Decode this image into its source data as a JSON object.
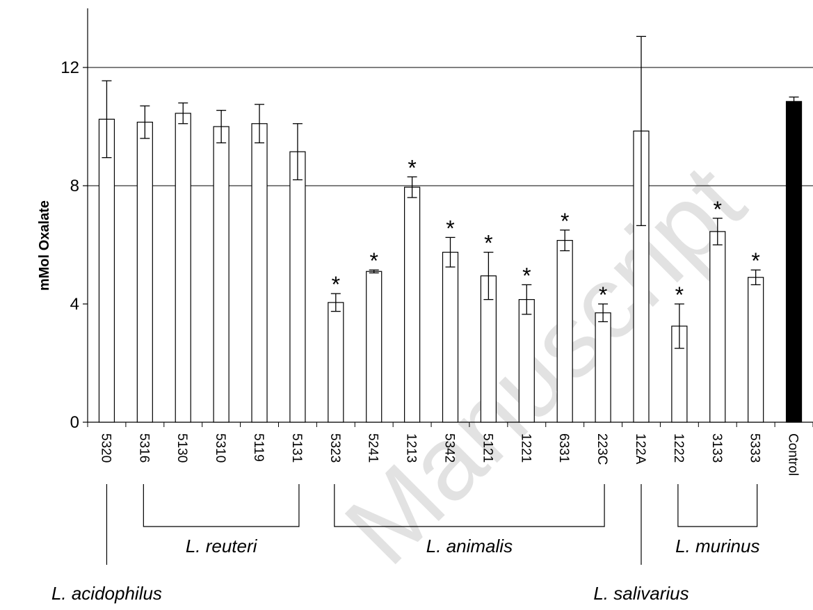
{
  "chart_data": {
    "type": "bar",
    "ylabel": "mMol Oxalate",
    "xlabel": "",
    "ylim": [
      0,
      14
    ],
    "yticks": [
      0,
      4,
      8,
      12
    ],
    "gridlines": [
      8,
      12
    ],
    "categories": [
      "5320",
      "5316",
      "5130",
      "5310",
      "5119",
      "5131",
      "5323",
      "5241",
      "1213",
      "5342",
      "5121",
      "1221",
      "6331",
      "223C",
      "122A",
      "1222",
      "3133",
      "5333",
      "Control"
    ],
    "values": [
      10.25,
      10.15,
      10.45,
      10.0,
      10.1,
      9.15,
      4.05,
      5.1,
      7.95,
      5.75,
      4.95,
      4.15,
      6.15,
      3.7,
      9.85,
      3.25,
      6.45,
      4.9,
      10.85
    ],
    "errors": [
      1.3,
      0.55,
      0.35,
      0.55,
      0.65,
      0.95,
      0.3,
      0.05,
      0.35,
      0.5,
      0.8,
      0.5,
      0.35,
      0.3,
      3.2,
      0.75,
      0.45,
      0.25,
      0.15
    ],
    "significant": [
      false,
      false,
      false,
      false,
      false,
      false,
      true,
      true,
      true,
      true,
      true,
      true,
      true,
      true,
      false,
      true,
      true,
      true,
      false
    ],
    "bar_colors": [
      "#ffffff",
      "#ffffff",
      "#ffffff",
      "#ffffff",
      "#ffffff",
      "#ffffff",
      "#ffffff",
      "#ffffff",
      "#ffffff",
      "#ffffff",
      "#ffffff",
      "#ffffff",
      "#ffffff",
      "#ffffff",
      "#ffffff",
      "#ffffff",
      "#ffffff",
      "#ffffff",
      "#000000"
    ],
    "significance_marker": "*",
    "groups": [
      {
        "label": "L. acidophilus",
        "start": 0,
        "end": 0,
        "style": "single"
      },
      {
        "label": "L. reuteri",
        "start": 1,
        "end": 5,
        "style": "bracket"
      },
      {
        "label": "L. animalis",
        "start": 6,
        "end": 13,
        "style": "bracket"
      },
      {
        "label": "L. salivarius",
        "start": 14,
        "end": 14,
        "style": "single"
      },
      {
        "label": "L. murinus",
        "start": 15,
        "end": 17,
        "style": "bracket"
      }
    ]
  },
  "watermark": "Manuscript"
}
